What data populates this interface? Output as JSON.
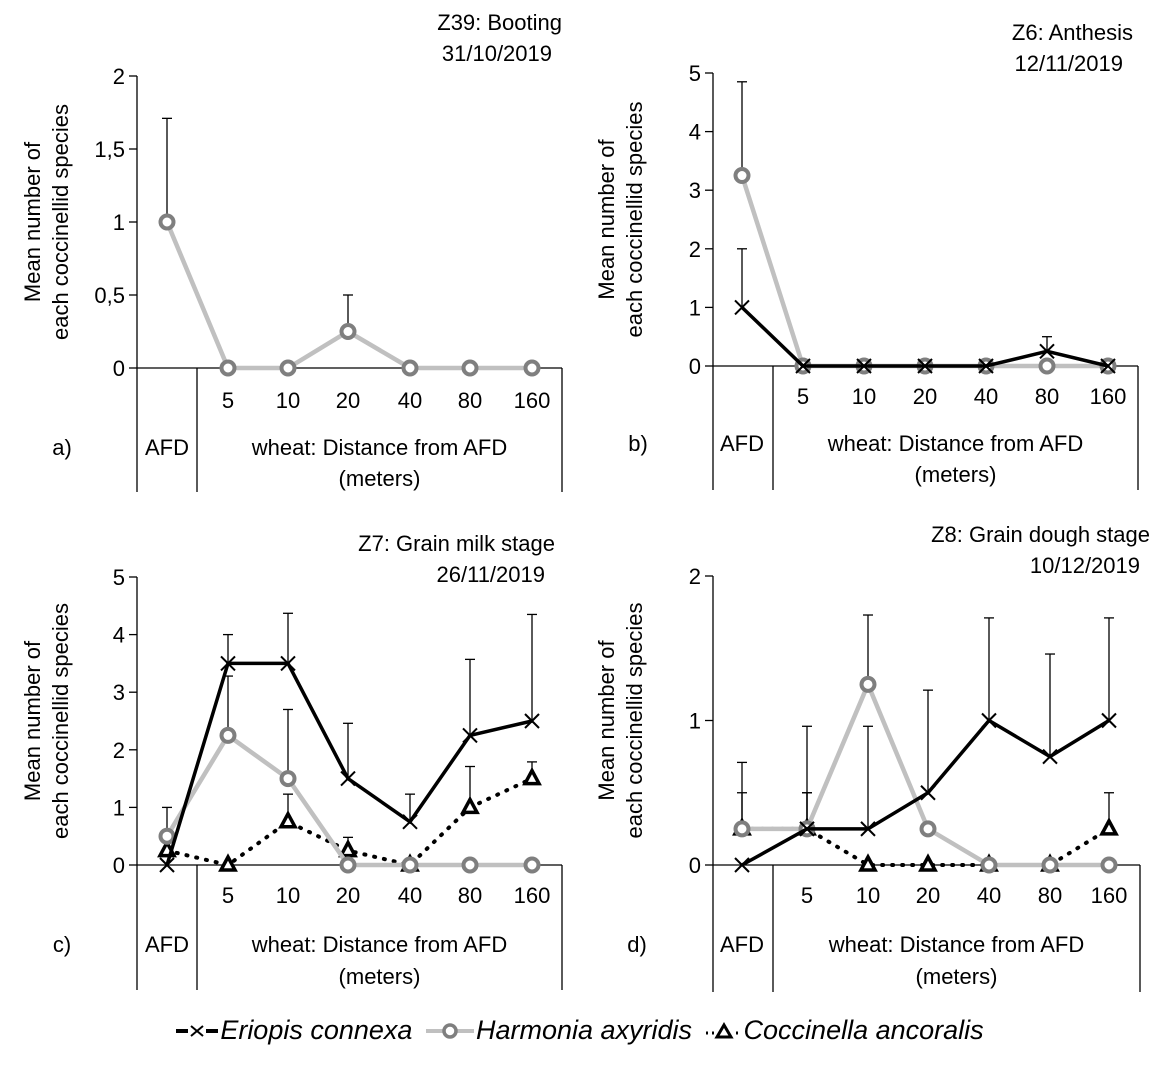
{
  "chart_data": [
    {
      "id": "a",
      "type": "line",
      "panel_label": "a)",
      "title": "Z39: Booting",
      "subtitle": "31/10/2019",
      "ylabel": [
        "Mean number of",
        "each coccinellid species"
      ],
      "xlabel": [
        "wheat: Distance from AFD",
        "(meters)"
      ],
      "group_label": "AFD",
      "categories": [
        "AFD",
        "5",
        "10",
        "20",
        "40",
        "80",
        "160"
      ],
      "ylim": [
        0,
        2
      ],
      "yticks": [
        0,
        0.5,
        1,
        1.5,
        2
      ],
      "ytick_labels": [
        "0",
        "0,5",
        "1",
        "1,5",
        "2"
      ],
      "series": [
        {
          "name": "Harmonia axyridis",
          "values": [
            1,
            0,
            0,
            0.25,
            0,
            0,
            0
          ],
          "error_upper": [
            1.71,
            null,
            null,
            0.5,
            null,
            null,
            null
          ]
        }
      ]
    },
    {
      "id": "b",
      "type": "line",
      "panel_label": "b)",
      "title": "Z6: Anthesis",
      "subtitle": "12/11/2019",
      "ylabel": [
        "Mean number of",
        "each coccinellid species"
      ],
      "xlabel": [
        "wheat: Distance from AFD",
        "(meters)"
      ],
      "group_label": "AFD",
      "categories": [
        "AFD",
        "5",
        "10",
        "20",
        "40",
        "80",
        "160"
      ],
      "ylim": [
        0,
        5
      ],
      "yticks": [
        0,
        1,
        2,
        3,
        4,
        5
      ],
      "ytick_labels": [
        "0",
        "1",
        "2",
        "3",
        "4",
        "5"
      ],
      "series": [
        {
          "name": "Eriopis connexa",
          "values": [
            1,
            0,
            0,
            0,
            0,
            0.25,
            0
          ],
          "error_upper": [
            2,
            null,
            null,
            null,
            null,
            0.5,
            null
          ]
        },
        {
          "name": "Harmonia axyridis",
          "values": [
            3.25,
            0,
            0,
            0,
            0,
            0,
            0
          ],
          "error_upper": [
            4.85,
            null,
            null,
            null,
            null,
            null,
            null
          ]
        }
      ]
    },
    {
      "id": "c",
      "type": "line",
      "panel_label": "c)",
      "title": "Z7: Grain milk stage",
      "subtitle": "26/11/2019",
      "ylabel": [
        "Mean number of",
        "each coccinellid species"
      ],
      "xlabel": [
        "wheat: Distance from AFD",
        "(meters)"
      ],
      "group_label": "AFD",
      "categories": [
        "AFD",
        "5",
        "10",
        "20",
        "40",
        "80",
        "160"
      ],
      "ylim": [
        0,
        5
      ],
      "yticks": [
        0,
        1,
        2,
        3,
        4,
        5
      ],
      "ytick_labels": [
        "0",
        "1",
        "2",
        "3",
        "4",
        "5"
      ],
      "series": [
        {
          "name": "Eriopis connexa",
          "values": [
            0,
            3.5,
            3.5,
            1.5,
            0.75,
            2.25,
            2.5
          ],
          "error_upper": [
            null,
            4.0,
            4.37,
            2.46,
            1.23,
            3.57,
            4.35
          ]
        },
        {
          "name": "Harmonia axyridis",
          "values": [
            0.5,
            2.25,
            1.5,
            0,
            0,
            0,
            0
          ],
          "error_upper": [
            1.0,
            3.28,
            2.7,
            null,
            null,
            null,
            null
          ]
        },
        {
          "name": "Coccinella ancoralis",
          "values": [
            0.25,
            0,
            0.75,
            0.25,
            0,
            1.0,
            1.5
          ],
          "error_upper": [
            null,
            null,
            1.23,
            0.48,
            null,
            1.71,
            1.79
          ]
        }
      ]
    },
    {
      "id": "d",
      "type": "line",
      "panel_label": "d)",
      "title": "Z8: Grain dough stage",
      "subtitle": "10/12/2019",
      "ylabel": [
        "Mean number of",
        "each coccinellid species"
      ],
      "xlabel": [
        "wheat: Distance from AFD",
        "(meters)"
      ],
      "group_label": "AFD",
      "categories": [
        "AFD",
        "5",
        "10",
        "20",
        "40",
        "80",
        "160"
      ],
      "ylim": [
        0,
        2
      ],
      "yticks": [
        0,
        1,
        2
      ],
      "ytick_labels": [
        "0",
        "1",
        "2"
      ],
      "series": [
        {
          "name": "Eriopis connexa",
          "values": [
            0,
            0.25,
            0.25,
            0.5,
            1.0,
            0.75,
            1.0
          ],
          "error_upper": [
            null,
            0.96,
            0.96,
            1.21,
            1.71,
            1.46,
            1.71
          ]
        },
        {
          "name": "Harmonia axyridis",
          "values": [
            0.25,
            0.25,
            1.25,
            0.25,
            0,
            0,
            0
          ],
          "error_upper": [
            0.71,
            0.5,
            1.73,
            null,
            null,
            null,
            null
          ]
        },
        {
          "name": "Coccinella ancoralis",
          "values": [
            0.25,
            0.25,
            0,
            0,
            0,
            0,
            0.25
          ],
          "error_upper": [
            0.5,
            0.5,
            null,
            null,
            null,
            null,
            0.5
          ]
        }
      ]
    }
  ],
  "legend": {
    "placement": "bottom-center",
    "items": [
      {
        "name": "Eriopis connexa",
        "marker": "x-icon",
        "line": "solid-black"
      },
      {
        "name": "Harmonia axyridis",
        "marker": "circle-icon",
        "line": "solid-gray"
      },
      {
        "name": "Coccinella ancoralis",
        "marker": "triangle-icon",
        "line": "dotted-black"
      }
    ]
  },
  "styles": {
    "Eriopis connexa": {
      "color": "#000000",
      "marker": "x"
    },
    "Harmonia axyridis": {
      "color": "#c0c0c0",
      "marker_color": "#7f7f7f",
      "marker": "circle"
    },
    "Coccinella ancoralis": {
      "color": "#000000",
      "marker": "triangle"
    }
  }
}
